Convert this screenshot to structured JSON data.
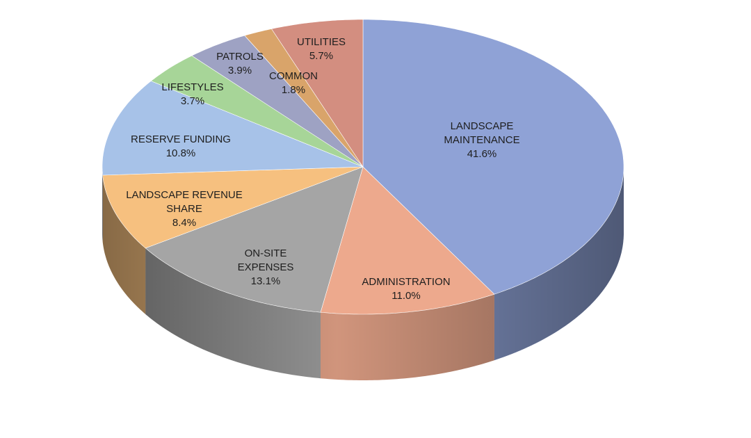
{
  "chart_data": {
    "type": "pie3d",
    "categories": [
      "LANDSCAPE MAINTENANCE",
      "ADMINISTRATION",
      "ON-SITE EXPENSES",
      "LANDSCAPE REVENUE SHARE",
      "RESERVE FUNDING",
      "LIFESTYLES",
      "PATROLS",
      "COMMON",
      "UTILITIES"
    ],
    "values": [
      41.6,
      11.0,
      13.1,
      8.4,
      10.8,
      3.7,
      3.9,
      1.8,
      5.7
    ],
    "value_labels": [
      "41.6%",
      "11.0%",
      "13.1%",
      "8.4%",
      "10.8%",
      "3.7%",
      "3.9%",
      "1.8%",
      "5.7%"
    ],
    "colors": [
      "#8fa2d6",
      "#eda98d",
      "#a5a5a5",
      "#f6c07f",
      "#a7c2e8",
      "#a7d598",
      "#9ea2c3",
      "#d9a46a",
      "#d38e80"
    ]
  }
}
